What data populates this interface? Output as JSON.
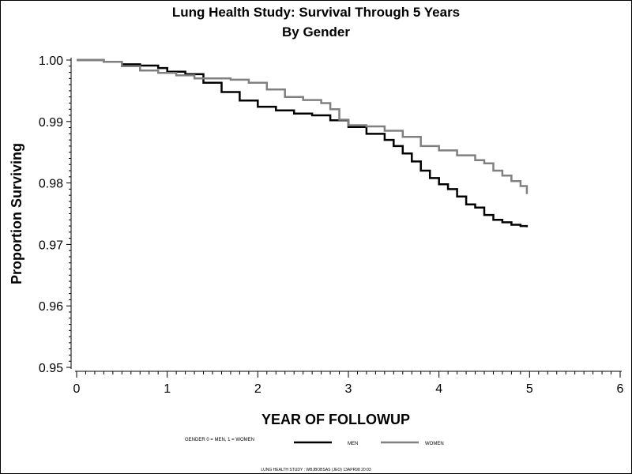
{
  "chart_data": {
    "type": "line",
    "title": "Lung Health Study: Survival Through 5 Years",
    "subtitle": "By Gender",
    "xlabel": "YEAR OF FOLLOWUP",
    "ylabel": "Proportion Surviving",
    "xlim": [
      0,
      6
    ],
    "ylim": [
      0.95,
      1.0
    ],
    "x_ticks": [
      0,
      1,
      2,
      3,
      4,
      5,
      6
    ],
    "y_ticks": [
      0.95,
      0.96,
      0.97,
      0.98,
      0.99,
      1.0
    ],
    "grid": false,
    "legend_label": "GENDER 0 = MEN, 1 = WOMEN",
    "legend_position": "bottom",
    "series": [
      {
        "name": "MEN",
        "color": "#000000",
        "points": [
          [
            0.0,
            1.0
          ],
          [
            0.1,
            1.0
          ],
          [
            0.3,
            0.9997
          ],
          [
            0.5,
            0.9993
          ],
          [
            0.7,
            0.9991
          ],
          [
            0.9,
            0.9987
          ],
          [
            1.0,
            0.9981
          ],
          [
            1.2,
            0.9977
          ],
          [
            1.4,
            0.9963
          ],
          [
            1.6,
            0.9948
          ],
          [
            1.8,
            0.9934
          ],
          [
            2.0,
            0.9924
          ],
          [
            2.2,
            0.9918
          ],
          [
            2.4,
            0.9913
          ],
          [
            2.6,
            0.991
          ],
          [
            2.8,
            0.9902
          ],
          [
            3.0,
            0.9891
          ],
          [
            3.2,
            0.988
          ],
          [
            3.4,
            0.987
          ],
          [
            3.5,
            0.986
          ],
          [
            3.6,
            0.9848
          ],
          [
            3.7,
            0.9835
          ],
          [
            3.8,
            0.982
          ],
          [
            3.9,
            0.9808
          ],
          [
            4.0,
            0.9798
          ],
          [
            4.1,
            0.979
          ],
          [
            4.2,
            0.9778
          ],
          [
            4.3,
            0.9765
          ],
          [
            4.4,
            0.976
          ],
          [
            4.5,
            0.9748
          ],
          [
            4.6,
            0.974
          ],
          [
            4.7,
            0.9736
          ],
          [
            4.8,
            0.9732
          ],
          [
            4.9,
            0.973
          ],
          [
            4.97,
            0.9728
          ]
        ]
      },
      {
        "name": "WOMEN",
        "color": "#808080",
        "points": [
          [
            0.0,
            1.0
          ],
          [
            0.3,
            0.9997
          ],
          [
            0.5,
            0.999
          ],
          [
            0.7,
            0.9983
          ],
          [
            0.9,
            0.9979
          ],
          [
            1.1,
            0.9975
          ],
          [
            1.3,
            0.997
          ],
          [
            1.5,
            0.997
          ],
          [
            1.7,
            0.9968
          ],
          [
            1.9,
            0.9963
          ],
          [
            2.1,
            0.9952
          ],
          [
            2.3,
            0.994
          ],
          [
            2.5,
            0.9935
          ],
          [
            2.7,
            0.993
          ],
          [
            2.8,
            0.992
          ],
          [
            2.9,
            0.9903
          ],
          [
            3.0,
            0.9894
          ],
          [
            3.2,
            0.9892
          ],
          [
            3.4,
            0.9885
          ],
          [
            3.6,
            0.9875
          ],
          [
            3.8,
            0.986
          ],
          [
            4.0,
            0.9853
          ],
          [
            4.2,
            0.9845
          ],
          [
            4.4,
            0.9837
          ],
          [
            4.5,
            0.9832
          ],
          [
            4.6,
            0.982
          ],
          [
            4.7,
            0.9812
          ],
          [
            4.8,
            0.9803
          ],
          [
            4.9,
            0.9795
          ],
          [
            4.97,
            0.9782
          ]
        ]
      }
    ]
  },
  "footnote": "LUNG HEALTH STUDY :  WBJBOBSAS (JEO) 13APR98 20:03"
}
